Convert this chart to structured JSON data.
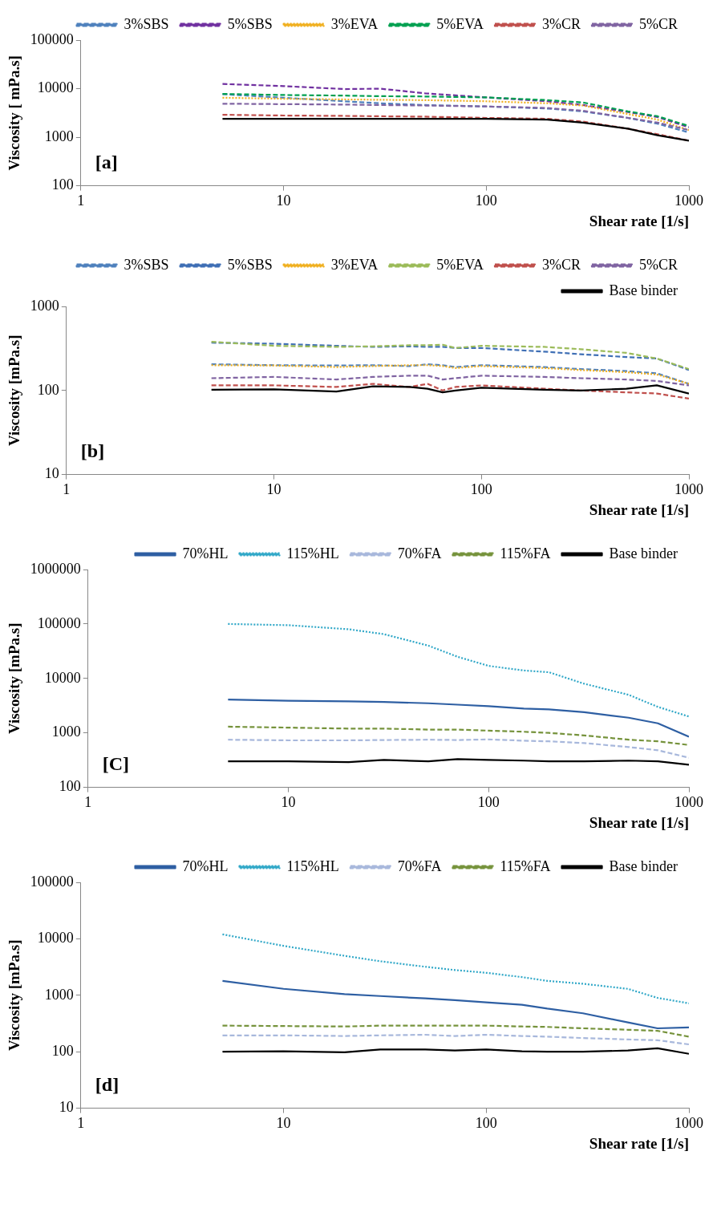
{
  "chart_data": [
    {
      "type": "line",
      "xlabel": "Shear rate [1/s]",
      "ylabel": "Viscosity [ mPa.s]",
      "log": "xy",
      "xlim": [
        1,
        1000
      ],
      "xticks": [
        1,
        10,
        100,
        1000
      ],
      "ylim": [
        100,
        100000
      ],
      "yticks": [
        100,
        1000,
        10000,
        100000
      ],
      "grid": false,
      "legend": "top",
      "marker": "none",
      "annotations": [
        "[a]"
      ],
      "x": [
        5,
        10,
        20,
        30,
        50,
        100,
        200,
        300,
        500,
        700,
        1000
      ],
      "series": [
        {
          "name": "3%SBS",
          "color": "#4f81bd",
          "line_style": "dashed",
          "values": [
            7700,
            6500,
            5500,
            5000,
            4600,
            4300,
            3900,
            3400,
            2500,
            1900,
            1250
          ]
        },
        {
          "name": "5%SBS",
          "color": "#7030a0",
          "line_style": "dashed",
          "values": [
            12500,
            11300,
            9800,
            10000,
            8000,
            6600,
            5500,
            4600,
            3300,
            2600,
            1600
          ]
        },
        {
          "name": "3%EVA",
          "color": "#f0b020",
          "line_style": "dotted",
          "values": [
            6500,
            6200,
            6000,
            5900,
            5800,
            5500,
            5000,
            4500,
            3000,
            2300,
            1400
          ]
        },
        {
          "name": "5%EVA",
          "color": "#00a050",
          "line_style": "dashed",
          "values": [
            7800,
            7400,
            7200,
            7000,
            6900,
            6600,
            5800,
            5200,
            3400,
            2700,
            1700
          ]
        },
        {
          "name": "3%CR",
          "color": "#c0504d",
          "line_style": "dashed",
          "values": [
            2900,
            2800,
            2750,
            2700,
            2650,
            2500,
            2400,
            2100,
            1500,
            1150,
            850
          ]
        },
        {
          "name": "5%CR",
          "color": "#8064a2",
          "line_style": "dashed",
          "values": [
            4900,
            4800,
            4700,
            4600,
            4500,
            4300,
            4000,
            3500,
            2500,
            2000,
            1400
          ]
        },
        {
          "color": "#000000",
          "line_style": "solid",
          "values": [
            2400,
            2400,
            2400,
            2400,
            2400,
            2400,
            2300,
            2000,
            1500,
            1100,
            850
          ]
        }
      ]
    },
    {
      "type": "line",
      "xlabel": "Shear rate [1/s]",
      "ylabel": "Viscosity [mPa.s]",
      "log": "xy",
      "xlim": [
        1,
        1000
      ],
      "xticks": [
        1,
        10,
        100,
        1000
      ],
      "ylim": [
        10,
        1000
      ],
      "yticks": [
        10,
        100,
        1000
      ],
      "grid": false,
      "legend": "top",
      "marker": "none",
      "annotations": [
        "[b]"
      ],
      "x": [
        5,
        10,
        20,
        30,
        45,
        55,
        65,
        75,
        100,
        200,
        300,
        500,
        700,
        1000
      ],
      "series": [
        {
          "name": "3%SBS",
          "color": "#4f81bd",
          "line_style": "dashed",
          "values": [
            205,
            200,
            198,
            200,
            195,
            205,
            200,
            190,
            200,
            190,
            180,
            170,
            160,
            120
          ]
        },
        {
          "name": "5%SBS",
          "color": "#3f6fb5",
          "line_style": "dashed",
          "values": [
            370,
            360,
            340,
            330,
            335,
            330,
            330,
            320,
            320,
            290,
            270,
            250,
            240,
            175
          ]
        },
        {
          "name": "3%EVA",
          "color": "#f0b020",
          "line_style": "dotted",
          "values": [
            200,
            198,
            190,
            195,
            200,
            200,
            195,
            185,
            195,
            185,
            175,
            165,
            155,
            120
          ]
        },
        {
          "name": "5%EVA",
          "color": "#9bbb59",
          "line_style": "dashed",
          "values": [
            380,
            340,
            330,
            335,
            345,
            345,
            350,
            320,
            340,
            330,
            310,
            280,
            240,
            180
          ]
        },
        {
          "name": "3%CR",
          "color": "#c0504d",
          "line_style": "dashed",
          "values": [
            115,
            115,
            110,
            120,
            110,
            120,
            100,
            110,
            115,
            105,
            100,
            95,
            92,
            80
          ]
        },
        {
          "name": "5%CR",
          "color": "#8064a2",
          "line_style": "dashed",
          "values": [
            140,
            145,
            135,
            145,
            150,
            150,
            135,
            140,
            150,
            145,
            140,
            135,
            130,
            115
          ]
        },
        {
          "name": "Base binder",
          "color": "#000000",
          "line_style": "solid",
          "values": [
            102,
            103,
            97,
            112,
            110,
            105,
            95,
            100,
            108,
            102,
            100,
            105,
            115,
            92
          ]
        }
      ]
    },
    {
      "type": "line",
      "xlabel": "Shear rate [1/s]",
      "ylabel": "Viscosity [mPa.s]",
      "log": "xy",
      "xlim": [
        1,
        1000
      ],
      "xticks": [
        1,
        10,
        100,
        1000
      ],
      "ylim": [
        100,
        1000000
      ],
      "yticks": [
        100,
        1000,
        10000,
        100000,
        1000000
      ],
      "grid": false,
      "legend": "top",
      "marker": "none",
      "annotations": [
        "[C]"
      ],
      "x": [
        5,
        10,
        20,
        30,
        50,
        70,
        100,
        150,
        200,
        300,
        500,
        700,
        1000
      ],
      "series": [
        {
          "name": "70%HL",
          "color": "#2e5fa3",
          "line_style": "solid",
          "values": [
            4100,
            3900,
            3800,
            3700,
            3500,
            3300,
            3100,
            2800,
            2700,
            2400,
            1900,
            1500,
            850
          ]
        },
        {
          "name": "115%HL",
          "color": "#31a8c8",
          "line_style": "dotted",
          "values": [
            100000,
            95000,
            80000,
            65000,
            40000,
            25000,
            17000,
            14000,
            13000,
            8000,
            5000,
            3000,
            2000
          ]
        },
        {
          "name": "70%FA",
          "color": "#a8b8dc",
          "line_style": "dashed",
          "values": [
            750,
            730,
            730,
            740,
            750,
            740,
            760,
            720,
            700,
            650,
            550,
            480,
            350
          ]
        },
        {
          "name": "115%FA",
          "color": "#76933c",
          "line_style": "dashed",
          "values": [
            1300,
            1250,
            1200,
            1200,
            1150,
            1150,
            1100,
            1050,
            1000,
            900,
            750,
            700,
            600
          ]
        },
        {
          "name": "Base binder",
          "color": "#000000",
          "line_style": "solid",
          "values": [
            300,
            300,
            290,
            320,
            300,
            330,
            320,
            310,
            300,
            300,
            310,
            300,
            260
          ]
        }
      ]
    },
    {
      "type": "line",
      "xlabel": "Shear rate [1/s]",
      "ylabel": "Viscosity [mPa.s]",
      "log": "xy",
      "xlim": [
        1,
        1000
      ],
      "xticks": [
        1,
        10,
        100,
        1000
      ],
      "ylim": [
        10,
        100000
      ],
      "yticks": [
        10,
        100,
        1000,
        10000,
        100000
      ],
      "grid": false,
      "legend": "top",
      "marker": "none",
      "annotations": [
        "[d]"
      ],
      "x": [
        5,
        10,
        20,
        30,
        50,
        70,
        100,
        150,
        200,
        300,
        500,
        700,
        1000
      ],
      "series": [
        {
          "name": "70%HL",
          "color": "#2e5fa3",
          "line_style": "solid",
          "values": [
            1800,
            1300,
            1050,
            970,
            880,
            820,
            750,
            680,
            580,
            480,
            330,
            260,
            270
          ]
        },
        {
          "name": "115%HL",
          "color": "#31a8c8",
          "line_style": "dotted",
          "values": [
            12000,
            7500,
            5000,
            4000,
            3200,
            2800,
            2500,
            2100,
            1800,
            1600,
            1300,
            900,
            720
          ]
        },
        {
          "name": "70%FA",
          "color": "#a8b8dc",
          "line_style": "dashed",
          "values": [
            195,
            195,
            190,
            195,
            200,
            190,
            200,
            190,
            185,
            175,
            165,
            160,
            135
          ]
        },
        {
          "name": "115%FA",
          "color": "#76933c",
          "line_style": "dashed",
          "values": [
            290,
            285,
            280,
            290,
            290,
            290,
            290,
            280,
            275,
            260,
            245,
            235,
            185
          ]
        },
        {
          "name": "Base binder",
          "color": "#000000",
          "line_style": "solid",
          "values": [
            100,
            102,
            98,
            110,
            110,
            105,
            110,
            102,
            100,
            100,
            105,
            115,
            92
          ]
        }
      ]
    }
  ]
}
